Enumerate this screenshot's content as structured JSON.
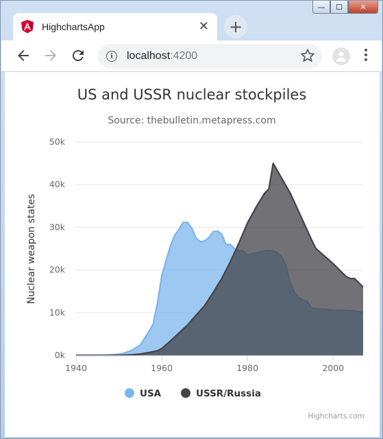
{
  "browser": {
    "tab_title": "HighchartsApp",
    "tab_close": "✕",
    "new_tab": "+",
    "url_host": "localhost",
    "url_port": ":4200",
    "win_minimize": "—",
    "win_maximize": "☐",
    "win_close": "✕"
  },
  "chart_data": {
    "type": "area",
    "title": "US and USSR nuclear stockpiles",
    "subtitle": "Source: thebulletin.metapress.com",
    "xlabel": "",
    "ylabel": "Nuclear weapon states",
    "xlim": [
      1940,
      2007
    ],
    "ylim": [
      0,
      50000
    ],
    "x_ticks": [
      "1940",
      "1960",
      "1980",
      "2000"
    ],
    "y_ticks": [
      "0k",
      "10k",
      "20k",
      "30k",
      "40k",
      "50k"
    ],
    "legend_position": "bottom",
    "grid": true,
    "credits": "Highcharts.com",
    "series": [
      {
        "name": "USA",
        "color": "#7cb5ec",
        "x": [
          1940,
          1945,
          1947,
          1949,
          1951,
          1953,
          1955,
          1957,
          1958,
          1959,
          1960,
          1961,
          1962,
          1963,
          1964,
          1965,
          1966,
          1967,
          1968,
          1969,
          1970,
          1971,
          1972,
          1973,
          1974,
          1975,
          1976,
          1977,
          1978,
          1979,
          1980,
          1981,
          1982,
          1983,
          1984,
          1985,
          1986,
          1987,
          1988,
          1989,
          1990,
          1991,
          1992,
          1993,
          1994,
          1995,
          1996,
          1997,
          2000,
          2004,
          2006,
          2007
        ],
        "values": [
          0,
          6,
          32,
          170,
          438,
          1169,
          2422,
          5543,
          7345,
          12298,
          18638,
          22229,
          25540,
          28133,
          29463,
          31139,
          31175,
          29825,
          27506,
          26615,
          26826,
          27614,
          28985,
          29118,
          28396,
          25963,
          26000,
          25000,
          24500,
          24500,
          23500,
          23800,
          24000,
          24300,
          24500,
          24600,
          24500,
          24000,
          23000,
          21000,
          17000,
          14700,
          13500,
          13000,
          12500,
          11000,
          11000,
          10900,
          10600,
          10500,
          10300,
          10100
        ]
      },
      {
        "name": "USSR/Russia",
        "color": "#434348",
        "x": [
          1940,
          1949,
          1950,
          1953,
          1955,
          1957,
          1959,
          1960,
          1962,
          1964,
          1966,
          1968,
          1970,
          1972,
          1974,
          1976,
          1978,
          1980,
          1982,
          1984,
          1985,
          1986,
          1990,
          1995,
          1996,
          2000,
          2003,
          2004,
          2005,
          2007
        ],
        "values": [
          0,
          0,
          5,
          120,
          300,
          660,
          1060,
          1600,
          3320,
          5221,
          7089,
          9399,
          11643,
          14720,
          17990,
          21900,
          26300,
          31000,
          34700,
          38000,
          39000,
          45000,
          38000,
          27000,
          25000,
          21500,
          18500,
          18000,
          18000,
          16000
        ]
      }
    ]
  }
}
